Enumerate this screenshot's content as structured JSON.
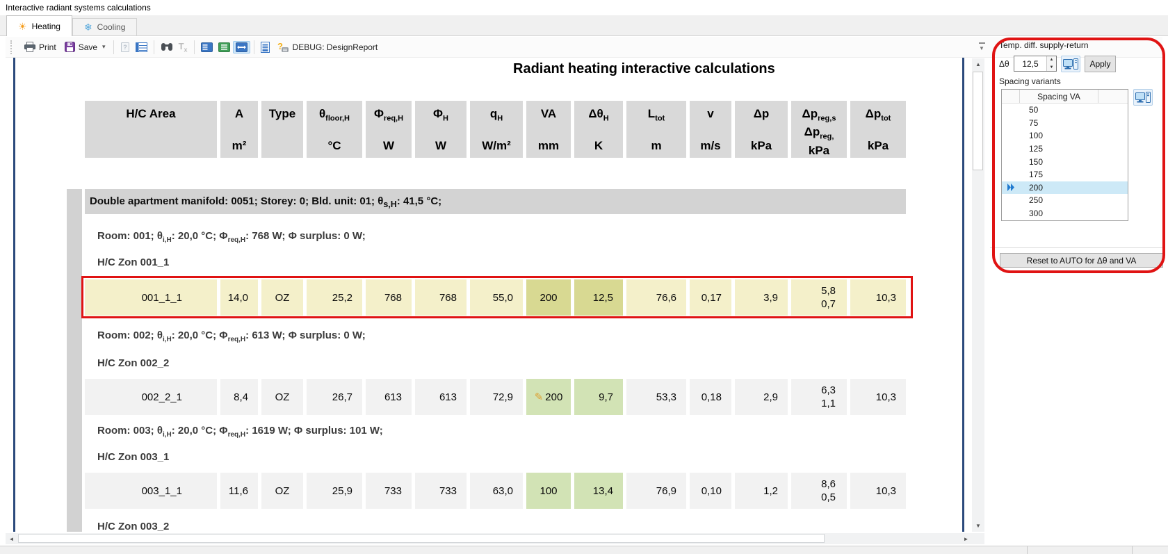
{
  "window": {
    "title": "Interactive radiant systems calculations"
  },
  "tabs": [
    {
      "label": "Heating",
      "active": true
    },
    {
      "label": "Cooling",
      "active": false
    }
  ],
  "toolbar": {
    "print_label": "Print",
    "save_label": "Save",
    "debug_label": "DEBUG: DesignReport"
  },
  "report": {
    "title": "Radiant heating interactive calculations",
    "columns": [
      {
        "lines": [
          [
            {
              "t": "H/C Area"
            }
          ]
        ],
        "unit": ""
      },
      {
        "lines": [
          [
            {
              "t": "A"
            }
          ]
        ],
        "unit": "m²"
      },
      {
        "lines": [
          [
            {
              "t": "Type"
            }
          ]
        ],
        "unit": ""
      },
      {
        "lines": [
          [
            {
              "t": "θ"
            },
            {
              "s": "floor,H"
            }
          ]
        ],
        "unit": "°C"
      },
      {
        "lines": [
          [
            {
              "t": "Φ"
            },
            {
              "s": "req,H"
            }
          ]
        ],
        "unit": "W"
      },
      {
        "lines": [
          [
            {
              "t": "Φ"
            },
            {
              "s": "H"
            }
          ]
        ],
        "unit": "W"
      },
      {
        "lines": [
          [
            {
              "t": "q"
            },
            {
              "s": "H"
            }
          ]
        ],
        "unit": "W/m²"
      },
      {
        "lines": [
          [
            {
              "t": "VA"
            }
          ]
        ],
        "unit": "mm"
      },
      {
        "lines": [
          [
            {
              "t": "Δθ"
            },
            {
              "s": "H"
            }
          ]
        ],
        "unit": "K"
      },
      {
        "lines": [
          [
            {
              "t": "L"
            },
            {
              "s": "tot"
            }
          ]
        ],
        "unit": "m"
      },
      {
        "lines": [
          [
            {
              "t": "v"
            }
          ]
        ],
        "unit": "m/s"
      },
      {
        "lines": [
          [
            {
              "t": "Δp"
            }
          ]
        ],
        "unit": "kPa"
      },
      {
        "lines": [
          [
            {
              "t": "Δp"
            },
            {
              "s": "reg,s"
            }
          ],
          [
            {
              "t": "Δp"
            },
            {
              "s": "reg,"
            }
          ]
        ],
        "unit": "kPa"
      },
      {
        "lines": [
          [
            {
              "t": "Δp"
            },
            {
              "s": "tot"
            }
          ]
        ],
        "unit": "kPa"
      }
    ],
    "sections": [
      {
        "type": "group",
        "parts": [
          {
            "t": "Double apartment manifold: 0051; Storey: 0; Bld. unit: 01; θ"
          },
          {
            "s": "s,H"
          },
          {
            "t": ": 41,5 °C;"
          }
        ]
      },
      {
        "type": "room",
        "parts": [
          {
            "t": "Room: 001; θ"
          },
          {
            "s": "i,H"
          },
          {
            "t": ": 20,0 °C; Φ"
          },
          {
            "s": "req,H"
          },
          {
            "t": ": 768 W; Φ surplus: 0 W;"
          }
        ]
      },
      {
        "type": "zone",
        "text": "H/C Zon 001_1"
      },
      {
        "type": "row",
        "selected": true,
        "hl": "olive",
        "pencil": false,
        "cells": [
          "001_1_1",
          "14,0",
          "OZ",
          "25,2",
          "768",
          "768",
          "55,0",
          "200",
          "12,5",
          "76,6",
          "0,17",
          "3,9",
          [
            "5,8",
            "0,7"
          ],
          "10,3"
        ]
      },
      {
        "type": "room",
        "parts": [
          {
            "t": "Room: 002; θ"
          },
          {
            "s": "i,H"
          },
          {
            "t": ": 20,0 °C; Φ"
          },
          {
            "s": "req,H"
          },
          {
            "t": ": 613 W; Φ surplus: 0 W;"
          }
        ]
      },
      {
        "type": "zone",
        "text": "H/C Zon 002_2"
      },
      {
        "type": "row",
        "selected": false,
        "hl": "green",
        "pencil": true,
        "cells": [
          "002_2_1",
          "8,4",
          "OZ",
          "26,7",
          "613",
          "613",
          "72,9",
          "200",
          "9,7",
          "53,3",
          "0,18",
          "2,9",
          [
            "6,3",
            "1,1"
          ],
          "10,3"
        ]
      },
      {
        "type": "room",
        "parts": [
          {
            "t": "Room: 003; θ"
          },
          {
            "s": "i,H"
          },
          {
            "t": ": 20,0 °C; Φ"
          },
          {
            "s": "req,H"
          },
          {
            "t": ": 1619 W; Φ surplus: 101 W;"
          }
        ]
      },
      {
        "type": "zone",
        "text": "H/C Zon 003_1"
      },
      {
        "type": "row",
        "selected": false,
        "hl": "green",
        "pencil": false,
        "cells": [
          "003_1_1",
          "11,6",
          "OZ",
          "25,9",
          "733",
          "733",
          "63,0",
          "100",
          "13,4",
          "76,9",
          "0,10",
          "1,2",
          [
            "8,6",
            "0,5"
          ],
          "10,3"
        ]
      },
      {
        "type": "zone",
        "text": "H/C Zon 003_2"
      }
    ]
  },
  "panel": {
    "temp_diff_label": "Temp. diff. supply-return",
    "delta_theta_label": "Δθ",
    "delta_theta_value": "12,5",
    "apply_label": "Apply",
    "spacing_label": "Spacing variants",
    "spacing_header": "Spacing VA",
    "spacing_rows": [
      {
        "value": "50"
      },
      {
        "value": "75"
      },
      {
        "value": "100"
      },
      {
        "value": "125"
      },
      {
        "value": "150"
      },
      {
        "value": "175"
      },
      {
        "value": "200",
        "selected": true
      },
      {
        "value": "250"
      },
      {
        "value": "300"
      }
    ],
    "reset_label": "Reset to AUTO for Δθ and VA"
  },
  "colors": {
    "accent_red": "#e01313",
    "selected_row": "#f4f0ca",
    "cell_olive": "#d8d992",
    "cell_green": "#d2e3b5",
    "list_selection": "#cde9f7",
    "page_border_blue": "#2c4a7c",
    "heating_icon": "#f59d1e",
    "cooling_icon": "#53a7dc"
  }
}
